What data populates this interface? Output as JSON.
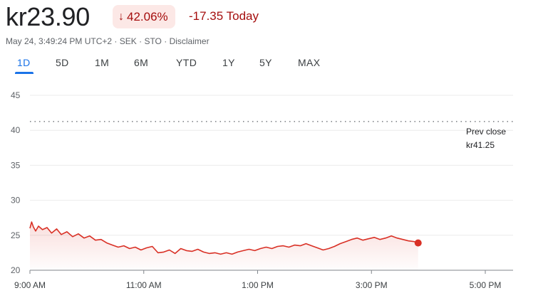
{
  "quote": {
    "price": "kr23.90",
    "change_pct": "42.06%",
    "change_abs": "-17.35 Today",
    "direction": "down",
    "down_color": "#a50e0e",
    "badge_bg": "#fce8e6"
  },
  "meta": {
    "timestamp": "May 24, 3:49:24 PM UTC+2",
    "currency": "SEK",
    "exchange": "STO",
    "disclaimer": "Disclaimer",
    "separator": " · "
  },
  "ranges": {
    "items": [
      "1D",
      "5D",
      "1M",
      "6M",
      "YTD",
      "1Y",
      "5Y",
      "MAX"
    ],
    "selected": "1D",
    "accent_color": "#1a73e8"
  },
  "prev_close": {
    "label": "Prev close",
    "value": "kr41.25"
  },
  "chart_data": {
    "type": "area",
    "title": "",
    "xlabel": "",
    "ylabel": "",
    "ylim": [
      20,
      45
    ],
    "yticks": [
      20,
      25,
      30,
      35,
      40,
      45
    ],
    "x_tick_labels": [
      "9:00 AM",
      "11:00 AM",
      "1:00 PM",
      "3:00 PM",
      "5:00 PM"
    ],
    "x_tick_hours": [
      9,
      11,
      13,
      15,
      17
    ],
    "xlim_hours": [
      9,
      17.5
    ],
    "grid": true,
    "line_color": "#d93025",
    "prev_close": 41.25,
    "series": [
      {
        "x_hours": [
          9.0,
          9.03,
          9.06,
          9.1,
          9.15,
          9.22,
          9.3,
          9.38,
          9.47,
          9.55,
          9.65,
          9.75,
          9.85,
          9.95,
          10.05,
          10.15,
          10.25,
          10.35,
          10.45,
          10.55,
          10.65,
          10.75,
          10.85,
          10.95,
          11.05,
          11.15,
          11.25,
          11.35,
          11.45,
          11.55,
          11.65,
          11.75,
          11.85,
          11.95,
          12.05,
          12.15,
          12.25,
          12.35,
          12.45,
          12.55,
          12.65,
          12.75,
          12.85,
          12.95,
          13.05,
          13.15,
          13.25,
          13.35,
          13.45,
          13.55,
          13.65,
          13.75,
          13.85,
          13.95,
          14.05,
          14.15,
          14.25,
          14.35,
          14.45,
          14.55,
          14.65,
          14.75,
          14.85,
          14.95,
          15.05,
          15.15,
          15.25,
          15.35,
          15.45,
          15.55,
          15.65,
          15.75,
          15.82
        ],
        "values": [
          26.0,
          26.9,
          26.2,
          25.6,
          26.3,
          25.8,
          26.1,
          25.3,
          25.9,
          25.1,
          25.5,
          24.8,
          25.2,
          24.6,
          24.9,
          24.3,
          24.4,
          23.9,
          23.6,
          23.3,
          23.5,
          23.1,
          23.3,
          22.9,
          23.2,
          23.4,
          22.5,
          22.6,
          22.9,
          22.4,
          23.1,
          22.8,
          22.7,
          23.0,
          22.6,
          22.4,
          22.5,
          22.3,
          22.5,
          22.3,
          22.6,
          22.8,
          23.0,
          22.8,
          23.1,
          23.3,
          23.1,
          23.4,
          23.5,
          23.3,
          23.6,
          23.5,
          23.8,
          23.5,
          23.2,
          22.9,
          23.1,
          23.4,
          23.8,
          24.1,
          24.4,
          24.6,
          24.3,
          24.5,
          24.7,
          24.4,
          24.6,
          24.9,
          24.6,
          24.4,
          24.2,
          24.1,
          23.9
        ]
      }
    ]
  }
}
